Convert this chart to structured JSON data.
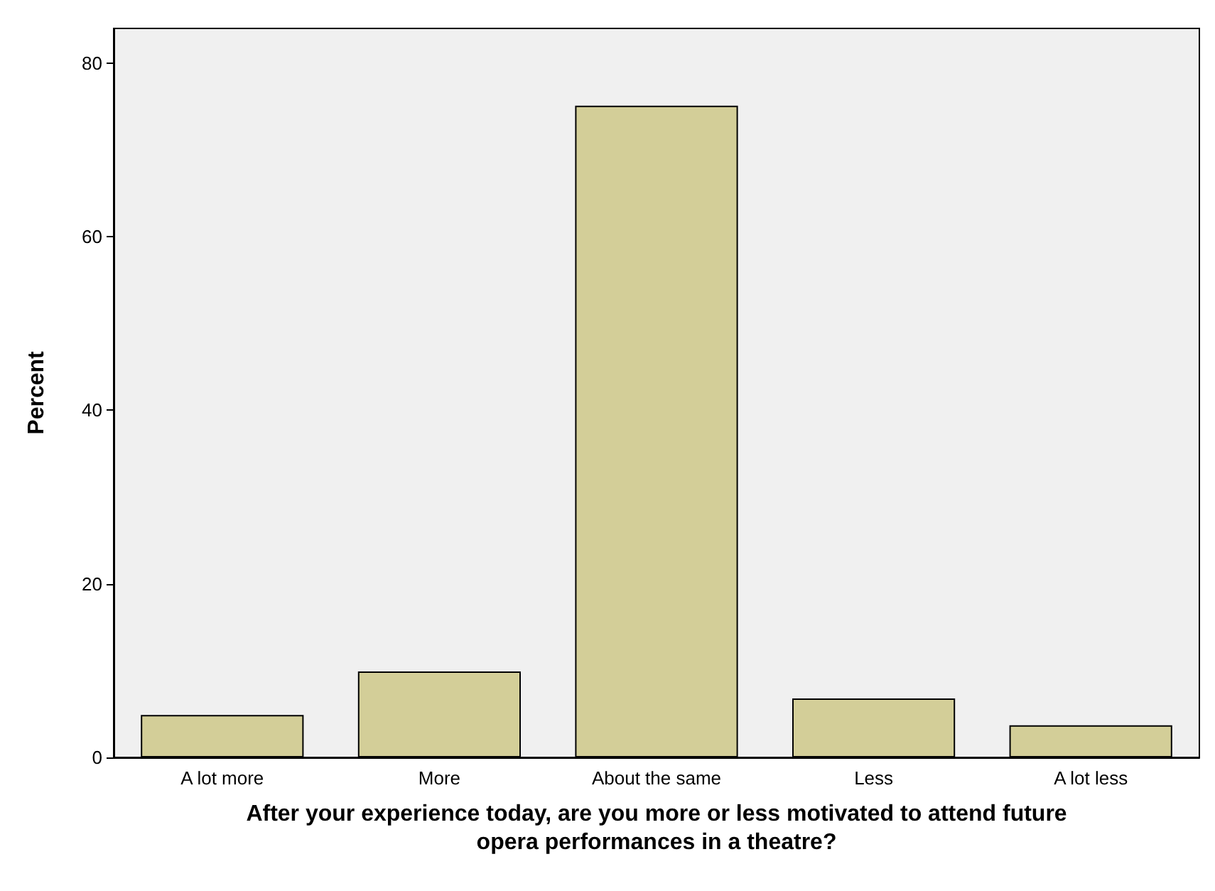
{
  "chart_data": {
    "type": "bar",
    "xlabel": "After your experience today, are you more or less motivated to attend future\nopera performances in a theatre?",
    "ylabel": "Percent",
    "categories": [
      "A lot more",
      "More",
      "About the same",
      "Less",
      "A lot less"
    ],
    "values": [
      4.9,
      9.9,
      75.1,
      6.8,
      3.7
    ],
    "color": "#d3ce98",
    "ylim": [
      0,
      84
    ],
    "yticks": [
      0,
      20,
      40,
      60,
      80
    ],
    "grid": false
  }
}
